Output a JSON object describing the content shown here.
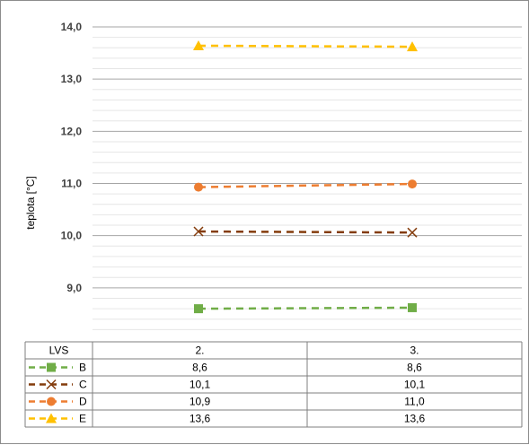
{
  "chart_data": {
    "type": "line",
    "ylabel": "teplota [°C]",
    "ylim": [
      8.0,
      14.0
    ],
    "y_ticks": [
      "9,0",
      "10,0",
      "11,0",
      "12,0",
      "13,0",
      "14,0"
    ],
    "y_tick_values": [
      9,
      10,
      11,
      12,
      13,
      14
    ],
    "minor_grid_step": 0.2,
    "grid": true,
    "legend": "data table below plot",
    "categories": [
      "2.",
      "3."
    ],
    "table_header": "LVS",
    "series": [
      {
        "name": "B",
        "values": [
          8.6,
          8.62
        ],
        "labels": [
          "8,6",
          "8,6"
        ],
        "color": "#70ad47",
        "marker": "square"
      },
      {
        "name": "C",
        "values": [
          10.08,
          10.06
        ],
        "labels": [
          "10,1",
          "10,1"
        ],
        "color": "#843c0c",
        "marker": "x"
      },
      {
        "name": "D",
        "values": [
          10.93,
          10.99
        ],
        "labels": [
          "10,9",
          "11,0"
        ],
        "color": "#ed7d31",
        "marker": "circle"
      },
      {
        "name": "E",
        "values": [
          13.64,
          13.62
        ],
        "labels": [
          "13,6",
          "13,6"
        ],
        "color": "#ffc000",
        "marker": "triangle"
      }
    ]
  }
}
